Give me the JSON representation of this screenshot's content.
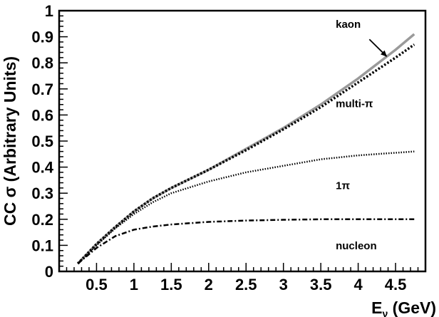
{
  "chart_data": {
    "type": "line",
    "title": "",
    "xlabel": {
      "main": "E",
      "sub": "ν",
      "rest": " (GeV)"
    },
    "ylabel": "CC σ (Arbitrary Units)",
    "xlim": [
      0,
      4.9
    ],
    "ylim": [
      0,
      1
    ],
    "xticks": [
      0.5,
      1,
      1.5,
      2,
      2.5,
      3,
      3.5,
      4,
      4.5
    ],
    "xtick_labels": [
      "0.5",
      "1",
      "1.5",
      "2",
      "2.5",
      "3",
      "3.5",
      "4",
      "4.5"
    ],
    "yticks": [
      0,
      0.1,
      0.2,
      0.3,
      0.4,
      0.5,
      0.6,
      0.7,
      0.8,
      0.9,
      1
    ],
    "ytick_labels": [
      "0",
      "0.1",
      "0.2",
      "0.3",
      "0.4",
      "0.5",
      "0.6",
      "0.7",
      "0.8",
      "0.9",
      "1"
    ],
    "grid": false,
    "legend": "none",
    "series": [
      {
        "label": "kaon",
        "style": "solid-gray",
        "color": "#999999",
        "x": [
          0.25,
          0.5,
          0.75,
          1.0,
          1.25,
          1.5,
          2.0,
          2.5,
          3.0,
          3.5,
          4.0,
          4.5,
          4.75
        ],
        "y": [
          0.03,
          0.105,
          0.17,
          0.23,
          0.28,
          0.32,
          0.39,
          0.47,
          0.55,
          0.64,
          0.74,
          0.85,
          0.91
        ]
      },
      {
        "label": "multi-π",
        "style": "dotted-bold",
        "color": "#000000",
        "x": [
          0.25,
          0.5,
          0.75,
          1.0,
          1.25,
          1.5,
          2.0,
          2.5,
          3.0,
          3.5,
          4.0,
          4.5,
          4.75
        ],
        "y": [
          0.03,
          0.105,
          0.17,
          0.23,
          0.28,
          0.32,
          0.39,
          0.465,
          0.545,
          0.63,
          0.725,
          0.82,
          0.87
        ]
      },
      {
        "label": "1π",
        "style": "dotted-fine",
        "color": "#000000",
        "x": [
          0.25,
          0.5,
          0.75,
          1.0,
          1.25,
          1.5,
          2.0,
          2.5,
          3.0,
          3.5,
          4.0,
          4.5,
          4.75
        ],
        "y": [
          0.03,
          0.1,
          0.165,
          0.22,
          0.265,
          0.3,
          0.345,
          0.38,
          0.405,
          0.43,
          0.445,
          0.455,
          0.46
        ]
      },
      {
        "label": "nucleon",
        "style": "dash-dot",
        "color": "#000000",
        "x": [
          0.25,
          0.5,
          0.75,
          1.0,
          1.25,
          1.5,
          2.0,
          2.5,
          3.0,
          3.5,
          4.0,
          4.5,
          4.75
        ],
        "y": [
          0.03,
          0.09,
          0.135,
          0.16,
          0.172,
          0.18,
          0.19,
          0.195,
          0.198,
          0.2,
          0.2,
          0.2,
          0.2
        ]
      }
    ],
    "annotations": [
      {
        "text": "kaon",
        "x": 3.7,
        "y": 0.935
      },
      {
        "text": "multi-π",
        "x": 3.7,
        "y": 0.63
      },
      {
        "text": "1π",
        "x": 3.7,
        "y": 0.315
      },
      {
        "text": "nucleon",
        "x": 3.7,
        "y": 0.085
      }
    ],
    "arrow": {
      "from": [
        4.15,
        0.89
      ],
      "to": [
        4.38,
        0.825
      ]
    }
  }
}
